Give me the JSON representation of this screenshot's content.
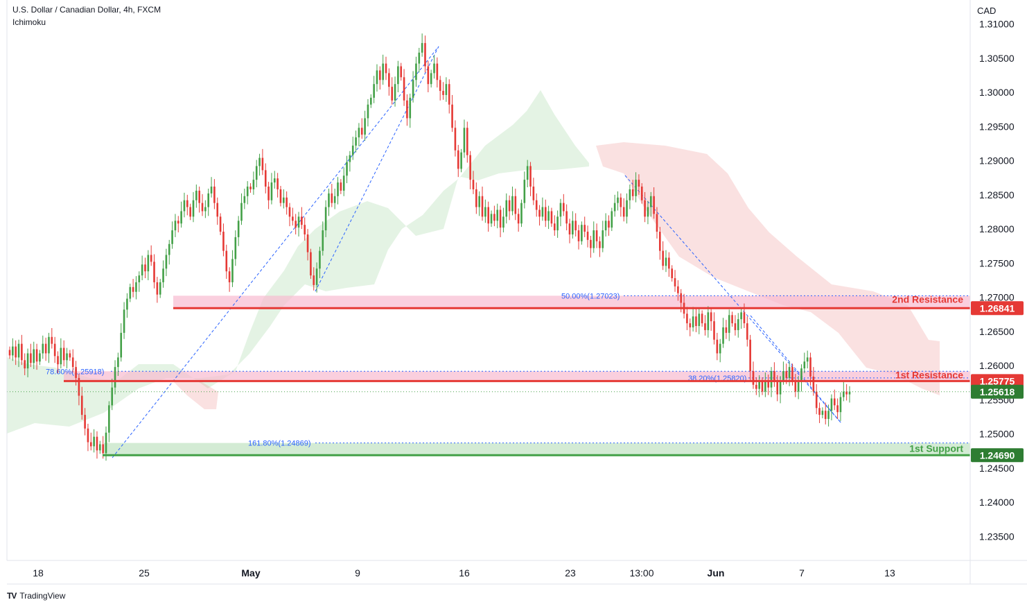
{
  "header": {
    "title": "U.S. Dollar / Canadian Dollar, 4h, FXCM",
    "indicator": "Ichimoku",
    "currency": "CAD"
  },
  "branding": {
    "name": "TradingView",
    "logo_text": "TV"
  },
  "chart_data": {
    "type": "candlestick",
    "symbol": "USDCAD",
    "interval": "4h",
    "y_axis": {
      "ticks": [
        "1.31000",
        "1.30500",
        "1.30000",
        "1.29500",
        "1.29000",
        "1.28500",
        "1.28000",
        "1.27500",
        "1.27000",
        "1.26500",
        "1.26000",
        "1.25500",
        "1.25000",
        "1.24500",
        "1.24000",
        "1.23500"
      ],
      "range": [
        1.2315,
        1.3135
      ],
      "position": "right"
    },
    "x_axis": {
      "ticks": [
        "18",
        "25",
        "May",
        "9",
        "16",
        "23",
        "13:00",
        "Jun",
        "7",
        "13"
      ]
    },
    "levels": [
      {
        "name": "2nd Resistance",
        "value": 1.26841,
        "label": "1.26841",
        "color": "#e53935",
        "zone_top": 1.27023
      },
      {
        "name": "1st Resistance",
        "value": 1.25775,
        "label": "1.25775",
        "color": "#e53935",
        "zone_top": 1.25918
      },
      {
        "name": "1st Support",
        "value": 1.2469,
        "label": "1.24690",
        "color": "#43a047",
        "zone_top": 1.24869
      }
    ],
    "current_price": {
      "value": 1.25618,
      "label": "1.25618",
      "color": "#2e7d32"
    },
    "fibonacci": [
      {
        "label": "50.00%(1.27023)",
        "value": 1.27023
      },
      {
        "label": "78.60%(1.25918)",
        "value": 1.25918
      },
      {
        "label": "38.20%(1.25820)",
        "value": 1.2582
      },
      {
        "label": "161.80%(1.24869)",
        "value": 1.24869
      }
    ],
    "swing_points": [
      {
        "price": 1.2469
      },
      {
        "price": 1.308
      },
      {
        "price": 1.2712
      },
      {
        "price": 1.2888
      },
      {
        "price": 1.2518
      }
    ],
    "closes": [
      1.2615,
      1.2628,
      1.2612,
      1.2632,
      1.2608,
      1.2596,
      1.2618,
      1.2604,
      1.2624,
      1.2606,
      1.2618,
      1.2632,
      1.2618,
      1.2642,
      1.2632,
      1.2614,
      1.2602,
      1.2626,
      1.2608,
      1.2618,
      1.2612,
      1.2598,
      1.2582,
      1.2556,
      1.2528,
      1.2508,
      1.2488,
      1.2482,
      1.2496,
      1.2476,
      1.2485,
      1.2472,
      1.2502,
      1.2542,
      1.2568,
      1.2598,
      1.2612,
      1.2648,
      1.2682,
      1.2698,
      1.2715,
      1.2708,
      1.2722,
      1.2732,
      1.2748,
      1.2738,
      1.2762,
      1.2752,
      1.2722,
      1.2704,
      1.2722,
      1.2742,
      1.2762,
      1.2778,
      1.2798,
      1.2812,
      1.2808,
      1.2826,
      1.2842,
      1.2832,
      1.2818,
      1.2842,
      1.2856,
      1.2838,
      1.2826,
      1.2832,
      1.2852,
      1.2862,
      1.2838,
      1.2818,
      1.2796,
      1.2768,
      1.2738,
      1.2722,
      1.2756,
      1.2788,
      1.2812,
      1.2838,
      1.2848,
      1.2862,
      1.2858,
      1.2872,
      1.2892,
      1.2904,
      1.2886,
      1.2862,
      1.2842,
      1.2868,
      1.2874,
      1.2858,
      1.2838,
      1.2846,
      1.2832,
      1.2818,
      1.2812,
      1.2802,
      1.2818,
      1.2806,
      1.2792,
      1.2766,
      1.2732,
      1.2718,
      1.2742,
      1.2768,
      1.2798,
      1.2832,
      1.2852,
      1.2838,
      1.2848,
      1.2868,
      1.2856,
      1.2878,
      1.2898,
      1.2908,
      1.2922,
      1.2934,
      1.2948,
      1.2938,
      1.2962,
      1.2982,
      1.2992,
      1.3012,
      1.3032,
      1.3018,
      1.3042,
      1.3028,
      1.3008,
      1.2988,
      1.3012,
      1.3038,
      1.3022,
      1.2988,
      1.2962,
      1.2992,
      1.3018,
      1.3042,
      1.3058,
      1.3072,
      1.3038,
      1.3012,
      1.3028,
      1.3042,
      1.3018,
      1.3002,
      1.2996,
      1.3012,
      1.2982,
      1.2948,
      1.2915,
      1.2888,
      1.2912,
      1.2948,
      1.2908,
      1.2872,
      1.2858,
      1.2832,
      1.2848,
      1.2818,
      1.2832,
      1.2808,
      1.2822,
      1.2812,
      1.2828,
      1.2802,
      1.2818,
      1.2842,
      1.2826,
      1.2848,
      1.2822,
      1.2808,
      1.2838,
      1.2872,
      1.2892,
      1.2862,
      1.2842,
      1.2828,
      1.2818,
      1.2832,
      1.2812,
      1.2826,
      1.2808,
      1.2798,
      1.2818,
      1.2838,
      1.2826,
      1.2808,
      1.2792,
      1.2812,
      1.2798,
      1.2782,
      1.2806,
      1.2796,
      1.2784,
      1.2772,
      1.2798,
      1.2782,
      1.2772,
      1.2798,
      1.2812,
      1.2802,
      1.2826,
      1.2838,
      1.2846,
      1.2832,
      1.2818,
      1.2842,
      1.2858,
      1.2848,
      1.2872,
      1.2862,
      1.2842,
      1.2818,
      1.2832,
      1.2848,
      1.2822,
      1.2796,
      1.2768,
      1.2746,
      1.2758,
      1.2742,
      1.2728,
      1.2716,
      1.2706,
      1.2692,
      1.2676,
      1.2662,
      1.2656,
      1.2672,
      1.2658,
      1.2676,
      1.2662,
      1.2652,
      1.2678,
      1.2665,
      1.2638,
      1.2618,
      1.2632,
      1.2656,
      1.2648,
      1.2674,
      1.2662,
      1.2652,
      1.2668,
      1.2678,
      1.2662,
      1.2638,
      1.2592,
      1.2572,
      1.2566,
      1.2578,
      1.2562,
      1.2578,
      1.2568,
      1.2592,
      1.2576,
      1.2558,
      1.2578,
      1.2592,
      1.2582,
      1.2598,
      1.2576,
      1.2562,
      1.2576,
      1.2596,
      1.2606,
      1.2612,
      1.2584,
      1.2562,
      1.2538,
      1.2528,
      1.2534,
      1.2522,
      1.2534,
      1.2552,
      1.2542,
      1.2532,
      1.2554,
      1.2562,
      1.2558,
      1.2562
    ]
  }
}
